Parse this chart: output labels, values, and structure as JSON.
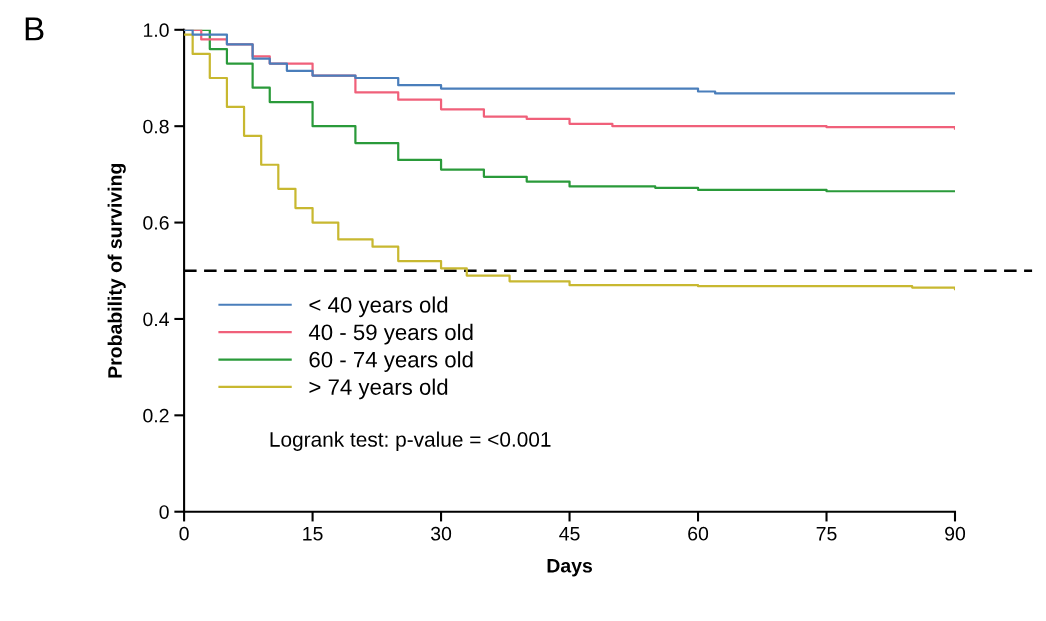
{
  "chart_data": {
    "type": "step",
    "title": "B",
    "xlabel": "Days",
    "ylabel": "Probability of surviving",
    "xlim": [
      0,
      90
    ],
    "xticks": [
      0,
      15,
      30,
      45,
      60,
      75,
      90
    ],
    "ylim": [
      0,
      1
    ],
    "yticks": [
      0,
      0.2,
      0.4,
      0.6,
      0.8,
      {
        "value": 1,
        "label": "1.0"
      }
    ],
    "grid": false,
    "legend": "left",
    "line_style": "solid",
    "marker": "none",
    "ref_lines": [
      {
        "axis": "y",
        "value": 0.5,
        "label": null,
        "color": "#000000",
        "line_style": "dashed"
      }
    ],
    "annotations": [
      "Logrank test: p-value = <0.001"
    ],
    "series": [
      {
        "name": "< 40 years old",
        "color": "#4a7ebb",
        "x": [
          0,
          1,
          5,
          8,
          10,
          12,
          15,
          20,
          25,
          30,
          60,
          62,
          90
        ],
        "values": [
          1.0,
          0.99,
          0.97,
          0.94,
          0.93,
          0.915,
          0.905,
          0.9,
          0.885,
          0.878,
          0.872,
          0.868,
          0.868
        ]
      },
      {
        "name": "40 - 59 years old",
        "color": "#f0607a",
        "x": [
          0,
          2,
          5,
          8,
          10,
          15,
          20,
          25,
          30,
          35,
          40,
          45,
          50,
          60,
          75,
          90
        ],
        "values": [
          1.0,
          0.98,
          0.97,
          0.945,
          0.93,
          0.905,
          0.87,
          0.855,
          0.835,
          0.82,
          0.815,
          0.805,
          0.8,
          0.8,
          0.798,
          0.795
        ]
      },
      {
        "name": "60 - 74 years old",
        "color": "#2a9a3a",
        "x": [
          0,
          3,
          5,
          8,
          10,
          15,
          20,
          25,
          30,
          35,
          40,
          45,
          55,
          60,
          75,
          90
        ],
        "values": [
          1.0,
          0.96,
          0.93,
          0.88,
          0.85,
          0.8,
          0.765,
          0.73,
          0.71,
          0.695,
          0.685,
          0.675,
          0.672,
          0.668,
          0.665,
          0.665
        ]
      },
      {
        "name": "> 74 years old",
        "color": "#c8b830",
        "x": [
          0,
          1,
          3,
          5,
          7,
          9,
          11,
          13,
          15,
          18,
          22,
          25,
          30,
          33,
          38,
          45,
          60,
          85,
          90
        ],
        "values": [
          0.99,
          0.95,
          0.9,
          0.84,
          0.78,
          0.72,
          0.67,
          0.63,
          0.6,
          0.565,
          0.55,
          0.52,
          0.505,
          0.49,
          0.478,
          0.47,
          0.468,
          0.465,
          0.462
        ]
      }
    ]
  }
}
